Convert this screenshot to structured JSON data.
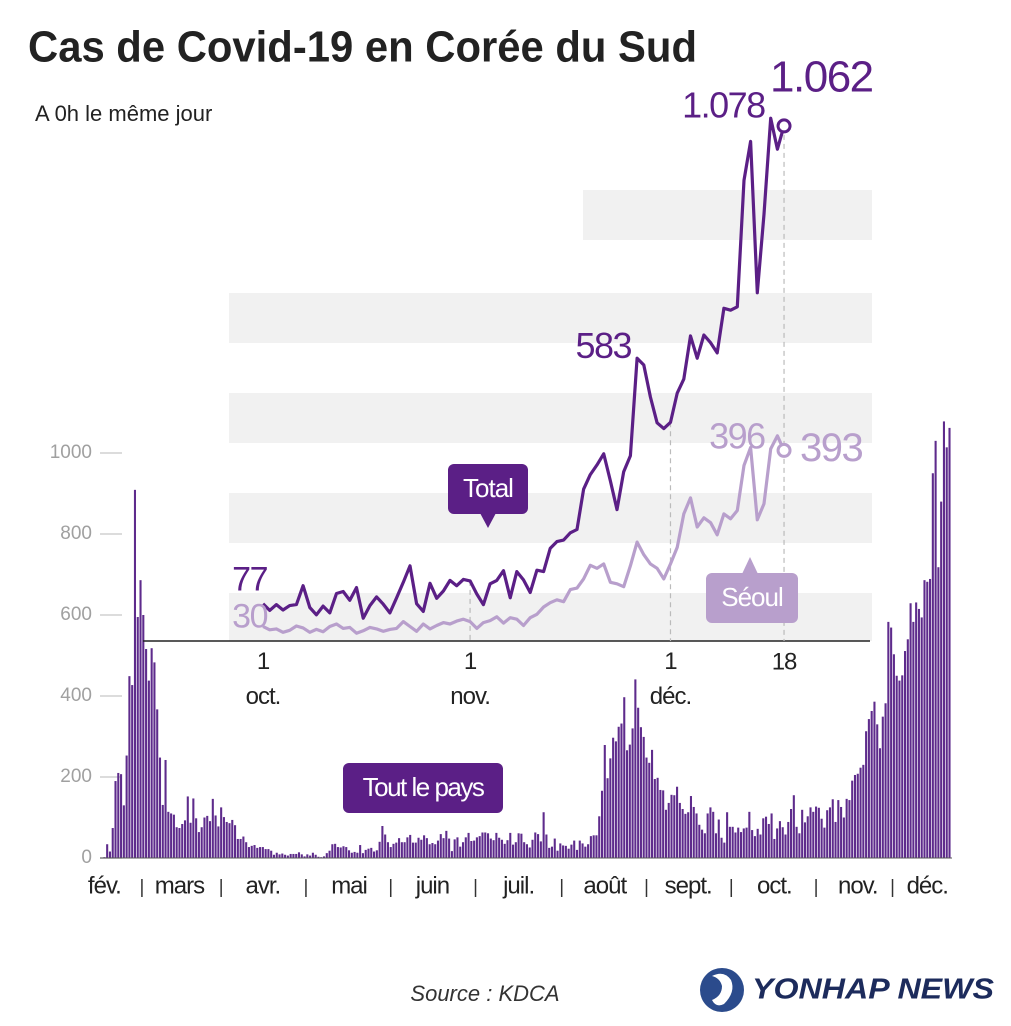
{
  "logo": "YONHAP NEWS",
  "chart_data": [
    {
      "type": "bar",
      "title": "Cas de Covid-19 en Corée du Sud",
      "subtitle": "A 0h le même jour",
      "source": "Source : KDCA",
      "categories": [
        "fév.",
        null,
        null,
        null,
        null,
        null,
        null,
        null,
        null,
        null,
        null,
        null,
        null,
        null,
        null,
        null,
        null,
        null,
        null,
        null,
        null,
        null,
        null,
        null,
        null,
        null,
        null,
        "mars",
        null,
        null,
        null,
        null,
        null,
        null,
        null,
        null,
        null,
        null,
        null,
        null,
        null,
        null,
        null,
        null,
        null,
        null,
        null,
        null,
        null,
        null,
        null,
        null,
        null,
        null,
        null,
        null,
        null,
        "avr.",
        null,
        null,
        null,
        null,
        null,
        null,
        null,
        null,
        null,
        null,
        null,
        null,
        null,
        null,
        null,
        null,
        null,
        null,
        null,
        null,
        null,
        null,
        null,
        null,
        null,
        null,
        null,
        null,
        null,
        null,
        "mai",
        null,
        null,
        null,
        null,
        null,
        null,
        null,
        null,
        null,
        null,
        null,
        null,
        null,
        null,
        null,
        null,
        null,
        null,
        null,
        null,
        null,
        null,
        null,
        null,
        null,
        null,
        null,
        null,
        null,
        "juin",
        null,
        null,
        null,
        null,
        null,
        null,
        null,
        null,
        null,
        null,
        null,
        null,
        null,
        null,
        null,
        null,
        null,
        null,
        null,
        null,
        null,
        null,
        null,
        null,
        null,
        null,
        null,
        null,
        null,
        null,
        "juil.",
        null,
        null,
        null,
        null,
        null,
        null,
        null,
        null,
        null,
        null,
        null,
        null,
        null,
        null,
        null,
        null,
        null,
        null,
        null,
        null,
        null,
        null,
        null,
        null,
        null,
        null,
        null,
        null,
        null,
        null,
        "août",
        null,
        null,
        null,
        null,
        null,
        null,
        null,
        null,
        null,
        null,
        null,
        null,
        null,
        null,
        null,
        null,
        null,
        null,
        null,
        null,
        null,
        null,
        null,
        null,
        null,
        null,
        null,
        null,
        null,
        "sept.",
        null,
        null,
        null,
        null,
        null,
        null,
        null,
        null,
        null,
        null,
        null,
        null,
        null,
        null,
        null,
        null,
        null,
        null,
        null,
        null,
        null,
        null,
        null,
        null,
        null,
        null,
        null,
        null,
        null,
        null,
        "oct.",
        null,
        null,
        null,
        null,
        null,
        null,
        null,
        null,
        null,
        null,
        null,
        null,
        null,
        null,
        null,
        null,
        null,
        null,
        null,
        null,
        null,
        null,
        null,
        null,
        null,
        null,
        null,
        null,
        null,
        "nov.",
        null,
        null,
        null,
        null,
        null,
        null,
        null,
        null,
        null,
        null,
        null,
        null,
        null,
        null,
        null,
        null,
        null,
        null,
        null,
        null,
        null,
        null,
        null,
        null,
        "déc.",
        null,
        null,
        null,
        null,
        null,
        null,
        null,
        null
      ],
      "series": [
        {
          "name": "Tout le pays",
          "color": "#5e2b8c",
          "values": [
            2,
            34,
            16,
            74,
            190,
            210,
            207,
            130,
            253,
            449,
            427,
            909,
            595,
            686,
            600,
            516,
            438,
            518,
            483,
            367,
            248,
            131,
            242,
            114,
            110,
            107,
            76,
            74,
            84,
            93,
            152,
            87,
            147,
            98,
            64,
            76,
            100,
            104,
            91,
            146,
            105,
            78,
            125,
            101,
            89,
            86,
            94,
            81,
            47,
            47,
            53,
            39,
            27,
            30,
            32,
            25,
            27,
            27,
            22,
            22,
            18,
            8,
            13,
            9,
            11,
            8,
            6,
            10,
            10,
            10,
            14,
            9,
            4,
            9,
            6,
            13,
            8,
            3,
            2,
            4,
            12,
            18,
            34,
            35,
            27,
            26,
            29,
            27,
            19,
            13,
            15,
            13,
            32,
            12,
            20,
            23,
            25,
            16,
            19,
            40,
            79,
            58,
            39,
            27,
            35,
            38,
            49,
            39,
            39,
            51,
            57,
            38,
            38,
            50,
            45,
            56,
            49,
            34,
            37,
            34,
            43,
            59,
            49,
            67,
            48,
            17,
            46,
            51,
            28,
            39,
            51,
            62,
            42,
            43,
            51,
            54,
            63,
            63,
            61,
            48,
            44,
            62,
            50,
            45,
            35,
            44,
            62,
            33,
            39,
            61,
            60,
            39,
            34,
            26,
            45,
            63,
            59,
            41,
            113,
            58,
            25,
            28,
            48,
            18,
            36,
            31,
            30,
            23,
            33,
            43,
            20,
            43,
            36,
            28,
            34,
            54,
            56,
            56,
            103,
            166,
            279,
            197,
            246,
            297,
            288,
            324,
            332,
            397,
            266,
            280,
            320,
            441,
            371,
            323,
            299,
            248,
            235,
            267,
            195,
            198,
            168,
            167,
            119,
            136,
            156,
            155,
            176,
            136,
            121,
            109,
            113,
            153,
            126,
            110,
            82,
            70,
            61,
            110,
            125,
            114,
            61,
            95,
            50,
            38,
            113,
            77,
            77,
            63,
            75,
            64,
            73,
            75,
            114,
            69,
            54,
            72,
            58,
            98,
            102,
            84,
            110,
            47,
            73,
            91,
            76,
            58,
            89,
            121,
            155,
            77,
            61,
            119,
            88,
            103,
            125,
            114,
            127,
            124,
            97,
            75,
            118,
            125,
            145,
            89,
            143,
            126,
            100,
            146,
            143,
            191,
            205,
            208,
            223,
            230,
            313,
            343,
            363,
            386,
            330,
            271,
            349,
            382,
            583,
            569,
            503,
            450,
            438,
            451,
            511,
            540,
            629,
            583,
            631,
            615,
            594,
            686,
            682,
            689,
            950,
            1030,
            718,
            880,
            1078,
            1014,
            1062
          ]
        }
      ],
      "ylim": [
        0,
        1000
      ],
      "yticks": [
        0,
        200,
        400,
        600,
        800,
        1000
      ]
    },
    {
      "type": "line",
      "categories": [
        "1 oct.",
        null,
        null,
        null,
        null,
        null,
        null,
        null,
        null,
        null,
        null,
        null,
        null,
        null,
        null,
        null,
        null,
        null,
        null,
        null,
        null,
        null,
        null,
        null,
        null,
        null,
        null,
        null,
        null,
        null,
        null,
        "1 nov.",
        null,
        null,
        null,
        null,
        null,
        null,
        null,
        null,
        null,
        null,
        null,
        null,
        null,
        null,
        null,
        null,
        null,
        null,
        null,
        null,
        null,
        null,
        null,
        null,
        null,
        null,
        null,
        null,
        null,
        "1 déc.",
        null,
        null,
        null,
        null,
        null,
        null,
        null,
        null,
        null,
        null,
        null,
        null,
        null,
        null,
        null,
        null,
        "18"
      ],
      "series": [
        {
          "name": "Total",
          "color": "#5b1f86",
          "values": [
            77,
            63,
            75,
            64,
            73,
            75,
            114,
            69,
            54,
            72,
            58,
            98,
            102,
            84,
            110,
            47,
            73,
            91,
            76,
            58,
            89,
            121,
            155,
            77,
            61,
            119,
            88,
            103,
            125,
            114,
            127,
            124,
            97,
            75,
            118,
            125,
            145,
            89,
            143,
            126,
            100,
            146,
            143,
            191,
            205,
            208,
            223,
            230,
            313,
            343,
            363,
            386,
            330,
            271,
            349,
            382,
            583,
            569,
            503,
            450,
            438,
            451,
            511,
            540,
            629,
            583,
            631,
            615,
            594,
            686,
            682,
            689,
            950,
            1030,
            718,
            880,
            1078,
            1014,
            1062
          ],
          "value_labels": [
            "77",
            null,
            null,
            null,
            null,
            null,
            null,
            null,
            null,
            null,
            null,
            null,
            null,
            null,
            null,
            null,
            null,
            null,
            null,
            null,
            null,
            null,
            null,
            null,
            null,
            null,
            null,
            null,
            null,
            null,
            null,
            null,
            null,
            null,
            null,
            null,
            null,
            null,
            null,
            null,
            null,
            null,
            null,
            null,
            null,
            null,
            null,
            null,
            null,
            null,
            null,
            null,
            null,
            null,
            null,
            null,
            "583",
            null,
            null,
            null,
            null,
            null,
            null,
            null,
            null,
            null,
            null,
            null,
            null,
            null,
            null,
            null,
            null,
            null,
            null,
            null,
            "1.078",
            null,
            "1.062"
          ]
        },
        {
          "name": "Séoul",
          "color": "#b89fcc",
          "values": [
            30,
            23,
            25,
            18,
            22,
            31,
            27,
            18,
            24,
            19,
            30,
            35,
            26,
            28,
            16,
            21,
            28,
            25,
            20,
            24,
            26,
            40,
            30,
            20,
            35,
            25,
            32,
            38,
            35,
            41,
            45,
            40,
            26,
            38,
            42,
            50,
            37,
            48,
            45,
            32,
            48,
            55,
            70,
            79,
            85,
            81,
            106,
            109,
            128,
            156,
            150,
            159,
            121,
            118,
            112,
            155,
            204,
            178,
            159,
            150,
            128,
            159,
            193,
            262,
            295,
            235,
            254,
            244,
            219,
            262,
            252,
            269,
            362,
            399,
            250,
            283,
            396,
            423,
            393
          ],
          "value_labels": [
            "30",
            null,
            null,
            null,
            null,
            null,
            null,
            null,
            null,
            null,
            null,
            null,
            null,
            null,
            null,
            null,
            null,
            null,
            null,
            null,
            null,
            null,
            null,
            null,
            null,
            null,
            null,
            null,
            null,
            null,
            null,
            null,
            null,
            null,
            null,
            null,
            null,
            null,
            null,
            null,
            null,
            null,
            null,
            null,
            null,
            null,
            null,
            null,
            null,
            null,
            null,
            null,
            null,
            null,
            null,
            null,
            null,
            null,
            null,
            null,
            null,
            null,
            null,
            null,
            null,
            null,
            null,
            null,
            null,
            null,
            null,
            null,
            null,
            null,
            null,
            null,
            "396",
            null,
            "393"
          ]
        }
      ],
      "ylim": [
        0,
        1100
      ]
    }
  ]
}
